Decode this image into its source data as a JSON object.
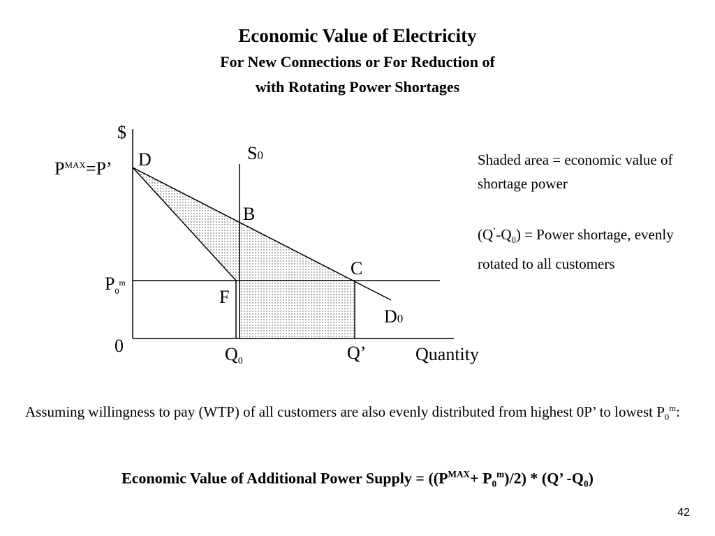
{
  "title": "Economic Value of Electricity",
  "subtitle": [
    "For New Connections or For Reduction of",
    "with Rotating Power Shortages"
  ],
  "diagram": {
    "y_axis_label": "$",
    "x_axis_label": "Quantity",
    "origin_label": "0",
    "pmax_label": [
      "P",
      "MAX",
      "=P’"
    ],
    "p0m_label": [
      "P",
      "0",
      "m"
    ],
    "point_d": "D",
    "point_b": "B",
    "point_c": "C",
    "point_f": "F",
    "supply_label": [
      "S",
      "0"
    ],
    "demand_label": [
      "D",
      "0"
    ],
    "q0_label": [
      "Q",
      "0"
    ],
    "qprime_label": "Q’"
  },
  "notes": {
    "shaded": "Shaded area = economic value of shortage power",
    "shortage": [
      "(Q",
      "’",
      "-Q",
      "0",
      ") = Power shortage, evenly rotated to all customers"
    ]
  },
  "assumption": [
    "Assuming willingness to pay (WTP) of all customers are also evenly distributed from highest 0P",
    "’",
    " to lowest P",
    "0",
    "m",
    ":"
  ],
  "formula": [
    "Economic Value of Additional Power Supply = ((P",
    "MAX",
    "+ P",
    "0",
    "m",
    ")/2) * (Q",
    "’",
    " -Q",
    "0",
    ")"
  ],
  "page_number": "42"
}
